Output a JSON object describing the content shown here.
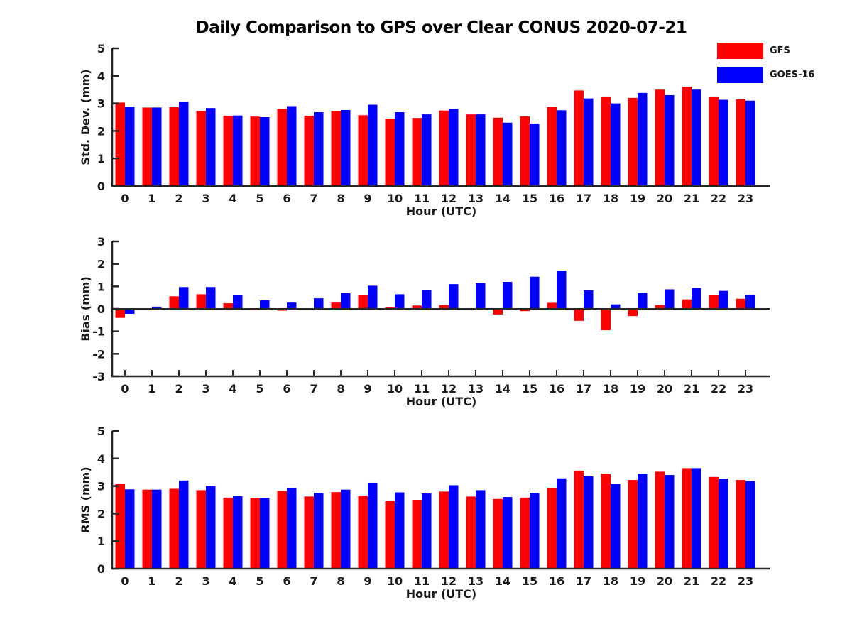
{
  "title": "Daily Comparison to GPS over Clear CONUS 2020-07-21",
  "legend": [
    {
      "label": "GFS",
      "color": "#ff0000"
    },
    {
      "label": "GOES-16",
      "color": "#0000ff"
    }
  ],
  "colors": {
    "axis": "#262626",
    "gfs": "#ff0000",
    "goes16": "#0000ff"
  },
  "chart_data": [
    {
      "type": "bar",
      "title": "",
      "ylabel": "Std. Dev. (mm)",
      "xlabel": "Hour (UTC)",
      "ylim": [
        0,
        5
      ],
      "yticks": [
        0,
        1,
        2,
        3,
        4,
        5
      ],
      "grid": false,
      "legend_position": "top-right",
      "categories": [
        "0",
        "1",
        "2",
        "3",
        "4",
        "5",
        "6",
        "7",
        "8",
        "9",
        "10",
        "11",
        "12",
        "13",
        "14",
        "15",
        "16",
        "17",
        "18",
        "19",
        "20",
        "21",
        "22",
        "23"
      ],
      "series": [
        {
          "name": "GFS",
          "color": "#ff0000",
          "values": [
            3.03,
            2.85,
            2.86,
            2.72,
            2.55,
            2.52,
            2.8,
            2.55,
            2.73,
            2.57,
            2.45,
            2.47,
            2.74,
            2.6,
            2.48,
            2.53,
            2.87,
            3.47,
            3.25,
            3.2,
            3.5,
            3.6,
            3.25,
            3.15
          ]
        },
        {
          "name": "GOES-16",
          "color": "#0000ff",
          "values": [
            2.88,
            2.85,
            3.05,
            2.83,
            2.56,
            2.5,
            2.9,
            2.68,
            2.76,
            2.95,
            2.68,
            2.6,
            2.8,
            2.6,
            2.3,
            2.27,
            2.75,
            3.18,
            3.0,
            3.38,
            3.3,
            3.5,
            3.13,
            3.1
          ]
        }
      ]
    },
    {
      "type": "bar",
      "title": "",
      "ylabel": "Bias (mm)",
      "xlabel": "Hour (UTC)",
      "ylim": [
        -3,
        3
      ],
      "yticks": [
        -3,
        -2,
        -1,
        0,
        1,
        2,
        3
      ],
      "grid": false,
      "categories": [
        "0",
        "1",
        "2",
        "3",
        "4",
        "5",
        "6",
        "7",
        "8",
        "9",
        "10",
        "11",
        "12",
        "13",
        "14",
        "15",
        "16",
        "17",
        "18",
        "19",
        "20",
        "21",
        "22",
        "23"
      ],
      "series": [
        {
          "name": "GFS",
          "color": "#ff0000",
          "values": [
            -0.4,
            -0.03,
            0.56,
            0.65,
            0.25,
            -0.04,
            -0.08,
            0.02,
            0.28,
            0.6,
            0.07,
            0.15,
            0.17,
            0.02,
            -0.25,
            -0.1,
            0.27,
            -0.53,
            -0.95,
            -0.32,
            0.17,
            0.42,
            0.6,
            0.45
          ]
        },
        {
          "name": "GOES-16",
          "color": "#0000ff",
          "values": [
            -0.22,
            0.1,
            0.97,
            0.97,
            0.6,
            0.38,
            0.28,
            0.47,
            0.7,
            1.03,
            0.65,
            0.85,
            1.1,
            1.15,
            1.2,
            1.43,
            1.7,
            0.82,
            0.2,
            0.72,
            0.87,
            0.93,
            0.8,
            0.62
          ]
        }
      ]
    },
    {
      "type": "bar",
      "title": "",
      "ylabel": "RMS (mm)",
      "xlabel": "Hour (UTC)",
      "ylim": [
        0,
        5
      ],
      "yticks": [
        0,
        1,
        2,
        3,
        4,
        5
      ],
      "grid": false,
      "categories": [
        "0",
        "1",
        "2",
        "3",
        "4",
        "5",
        "6",
        "7",
        "8",
        "9",
        "10",
        "11",
        "12",
        "13",
        "14",
        "15",
        "16",
        "17",
        "18",
        "19",
        "20",
        "21",
        "22",
        "23"
      ],
      "series": [
        {
          "name": "GFS",
          "color": "#ff0000",
          "values": [
            3.07,
            2.87,
            2.9,
            2.85,
            2.58,
            2.57,
            2.82,
            2.62,
            2.78,
            2.65,
            2.45,
            2.5,
            2.8,
            2.62,
            2.53,
            2.58,
            2.93,
            3.55,
            3.45,
            3.22,
            3.52,
            3.65,
            3.33,
            3.22
          ]
        },
        {
          "name": "GOES-16",
          "color": "#0000ff",
          "values": [
            2.88,
            2.87,
            3.2,
            3.0,
            2.63,
            2.57,
            2.92,
            2.75,
            2.87,
            3.12,
            2.77,
            2.73,
            3.03,
            2.85,
            2.6,
            2.75,
            3.28,
            3.35,
            3.08,
            3.45,
            3.4,
            3.65,
            3.27,
            3.18
          ]
        }
      ]
    }
  ]
}
